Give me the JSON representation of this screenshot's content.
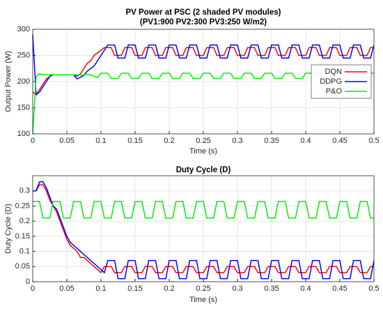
{
  "chart_data": [
    {
      "type": "line",
      "title": "PV Power at PSC (2 shaded PV modules)",
      "subtitle": "(PV1:900 PV2:300 PV3:250 W/m2)",
      "x_label": "Time (s)",
      "y_label": "Output Power (W)",
      "x": [
        0,
        0.005,
        0.01,
        0.015,
        0.02,
        0.025,
        0.03,
        0.035,
        0.04,
        0.045,
        0.05,
        0.055,
        0.06,
        0.065,
        0.07,
        0.075,
        0.08,
        0.085,
        0.09,
        0.095,
        0.1,
        0.105,
        0.11,
        0.115,
        0.12,
        0.125,
        0.13,
        0.135,
        0.14,
        0.145,
        0.15,
        0.155,
        0.16,
        0.165,
        0.17,
        0.175,
        0.18,
        0.185,
        0.19,
        0.195,
        0.2,
        0.205,
        0.21,
        0.215,
        0.22,
        0.225,
        0.23,
        0.235,
        0.24,
        0.245,
        0.25,
        0.255,
        0.26,
        0.265,
        0.27,
        0.275,
        0.28,
        0.285,
        0.29,
        0.295,
        0.3,
        0.305,
        0.31,
        0.315,
        0.32,
        0.325,
        0.33,
        0.335,
        0.34,
        0.345,
        0.35,
        0.355,
        0.36,
        0.365,
        0.37,
        0.375,
        0.38,
        0.385,
        0.39,
        0.395,
        0.4,
        0.405,
        0.41,
        0.415,
        0.42,
        0.425,
        0.43,
        0.435,
        0.44,
        0.445,
        0.45,
        0.455,
        0.46,
        0.465,
        0.47,
        0.475,
        0.48,
        0.485,
        0.49,
        0.495,
        0.5
      ],
      "series": [
        {
          "name": "DQN",
          "color": "#ff0000",
          "values": [
            180,
            175,
            185,
            195,
            205,
            210,
            213,
            213,
            213,
            213,
            213,
            213,
            213,
            210,
            215,
            225,
            235,
            240,
            250,
            255,
            260,
            265,
            265,
            265,
            250,
            250,
            250,
            265,
            265,
            265,
            250,
            250,
            250,
            265,
            265,
            265,
            250,
            250,
            250,
            265,
            265,
            265,
            250,
            250,
            250,
            265,
            265,
            265,
            250,
            250,
            250,
            265,
            265,
            265,
            250,
            250,
            250,
            265,
            265,
            265,
            250,
            250,
            250,
            265,
            265,
            265,
            250,
            250,
            250,
            265,
            265,
            265,
            250,
            250,
            250,
            265,
            265,
            265,
            250,
            250,
            250,
            265,
            265,
            265,
            250,
            250,
            250,
            265,
            265,
            265,
            250,
            250,
            250,
            265,
            265,
            265,
            250,
            250,
            250,
            265,
            265
          ]
        },
        {
          "name": "DDPG",
          "color": "#0000ff",
          "values": [
            290,
            175,
            180,
            190,
            200,
            210,
            213,
            213,
            213,
            213,
            213,
            213,
            213,
            205,
            208,
            212,
            220,
            225,
            230,
            240,
            250,
            260,
            270,
            270,
            270,
            245,
            245,
            245,
            270,
            270,
            270,
            245,
            245,
            245,
            270,
            270,
            270,
            245,
            245,
            245,
            270,
            270,
            270,
            245,
            245,
            245,
            270,
            270,
            270,
            245,
            245,
            245,
            270,
            270,
            270,
            245,
            245,
            245,
            270,
            270,
            270,
            245,
            245,
            245,
            270,
            270,
            270,
            245,
            245,
            245,
            270,
            270,
            270,
            245,
            245,
            245,
            270,
            270,
            270,
            245,
            245,
            245,
            270,
            270,
            270,
            245,
            245,
            245,
            270,
            270,
            270,
            245,
            245,
            245,
            270,
            270,
            270,
            245,
            245,
            245,
            270
          ]
        },
        {
          "name": "P&O",
          "color": "#00ee00",
          "values": [
            100,
            210,
            215,
            213,
            213,
            213,
            213,
            213,
            213,
            213,
            213,
            213,
            213,
            213,
            212,
            213,
            214,
            213,
            210,
            208,
            216,
            216,
            216,
            206,
            206,
            206,
            216,
            216,
            216,
            206,
            206,
            206,
            216,
            216,
            216,
            206,
            206,
            206,
            216,
            216,
            216,
            206,
            206,
            206,
            216,
            216,
            216,
            206,
            206,
            206,
            216,
            216,
            216,
            206,
            206,
            206,
            216,
            216,
            216,
            206,
            206,
            206,
            216,
            216,
            216,
            206,
            206,
            206,
            216,
            216,
            216,
            206,
            206,
            206,
            216,
            216,
            216,
            206,
            206,
            206,
            216,
            216,
            216,
            206,
            206,
            206,
            216,
            216,
            216,
            206,
            206,
            206,
            216,
            216,
            216,
            206,
            206,
            206,
            216,
            216,
            216
          ]
        }
      ],
      "xlim": [
        0,
        0.5
      ],
      "xticks": [
        0,
        0.05,
        0.1,
        0.15,
        0.2,
        0.25,
        0.3,
        0.35,
        0.4,
        0.45,
        0.5
      ],
      "ylim": [
        100,
        300
      ],
      "yticks": [
        100,
        150,
        200,
        250,
        300
      ],
      "grid": true,
      "legend": "right"
    },
    {
      "type": "line",
      "title": "Duty Cycle (D)",
      "x_label": "Time (s)",
      "y_label": "Duty Cycle (D)",
      "x": [
        0,
        0.005,
        0.01,
        0.015,
        0.02,
        0.025,
        0.03,
        0.035,
        0.04,
        0.045,
        0.05,
        0.055,
        0.06,
        0.065,
        0.07,
        0.075,
        0.08,
        0.085,
        0.09,
        0.095,
        0.1,
        0.105,
        0.11,
        0.115,
        0.12,
        0.125,
        0.13,
        0.135,
        0.14,
        0.145,
        0.15,
        0.155,
        0.16,
        0.165,
        0.17,
        0.175,
        0.18,
        0.185,
        0.19,
        0.195,
        0.2,
        0.205,
        0.21,
        0.215,
        0.22,
        0.225,
        0.23,
        0.235,
        0.24,
        0.245,
        0.25,
        0.255,
        0.26,
        0.265,
        0.27,
        0.275,
        0.28,
        0.285,
        0.29,
        0.295,
        0.3,
        0.305,
        0.31,
        0.315,
        0.32,
        0.325,
        0.33,
        0.335,
        0.34,
        0.345,
        0.35,
        0.355,
        0.36,
        0.365,
        0.37,
        0.375,
        0.38,
        0.385,
        0.39,
        0.395,
        0.4,
        0.405,
        0.41,
        0.415,
        0.42,
        0.425,
        0.43,
        0.435,
        0.44,
        0.445,
        0.45,
        0.455,
        0.46,
        0.465,
        0.47,
        0.475,
        0.48,
        0.485,
        0.49,
        0.495,
        0.5
      ],
      "series": [
        {
          "color": "#ff0000",
          "values": [
            0.3,
            0.3,
            0.32,
            0.32,
            0.3,
            0.27,
            0.25,
            0.23,
            0.2,
            0.17,
            0.14,
            0.12,
            0.11,
            0.1,
            0.08,
            0.08,
            0.07,
            0.06,
            0.05,
            0.04,
            0.03,
            0.05,
            0.05,
            0.05,
            0.03,
            0.03,
            0.03,
            0.05,
            0.05,
            0.05,
            0.03,
            0.03,
            0.03,
            0.05,
            0.05,
            0.05,
            0.03,
            0.03,
            0.03,
            0.05,
            0.05,
            0.05,
            0.03,
            0.03,
            0.03,
            0.05,
            0.05,
            0.05,
            0.03,
            0.03,
            0.03,
            0.05,
            0.05,
            0.05,
            0.03,
            0.03,
            0.03,
            0.05,
            0.05,
            0.05,
            0.03,
            0.03,
            0.03,
            0.05,
            0.05,
            0.05,
            0.03,
            0.03,
            0.03,
            0.05,
            0.05,
            0.05,
            0.03,
            0.03,
            0.03,
            0.05,
            0.05,
            0.05,
            0.03,
            0.03,
            0.03,
            0.05,
            0.05,
            0.05,
            0.03,
            0.03,
            0.03,
            0.05,
            0.05,
            0.05,
            0.03,
            0.03,
            0.03,
            0.05,
            0.05,
            0.05,
            0.03,
            0.03,
            0.03,
            0.05,
            0.05
          ]
        },
        {
          "color": "#0000ff",
          "values": [
            0.3,
            0.3,
            0.33,
            0.33,
            0.31,
            0.28,
            0.25,
            0.24,
            0.21,
            0.18,
            0.15,
            0.13,
            0.12,
            0.11,
            0.1,
            0.09,
            0.08,
            0.07,
            0.06,
            0.05,
            0.04,
            0.03,
            0.07,
            0.07,
            0.07,
            0.01,
            0.01,
            0.01,
            0.07,
            0.07,
            0.07,
            0.01,
            0.01,
            0.01,
            0.07,
            0.07,
            0.07,
            0.01,
            0.01,
            0.01,
            0.07,
            0.07,
            0.07,
            0.01,
            0.01,
            0.01,
            0.07,
            0.07,
            0.07,
            0.01,
            0.01,
            0.01,
            0.07,
            0.07,
            0.07,
            0.01,
            0.01,
            0.01,
            0.07,
            0.07,
            0.07,
            0.01,
            0.01,
            0.01,
            0.07,
            0.07,
            0.07,
            0.01,
            0.01,
            0.01,
            0.07,
            0.07,
            0.07,
            0.01,
            0.01,
            0.01,
            0.07,
            0.07,
            0.07,
            0.01,
            0.01,
            0.01,
            0.07,
            0.07,
            0.07,
            0.01,
            0.01,
            0.01,
            0.07,
            0.07,
            0.07,
            0.01,
            0.01,
            0.01,
            0.07,
            0.07,
            0.07,
            0.01,
            0.01,
            0.01,
            0.07
          ]
        },
        {
          "color": "#00ee00",
          "values": [
            0.265,
            0.265,
            0.265,
            0.21,
            0.21,
            0.21,
            0.265,
            0.265,
            0.265,
            0.21,
            0.21,
            0.21,
            0.265,
            0.265,
            0.265,
            0.21,
            0.21,
            0.21,
            0.265,
            0.265,
            0.265,
            0.21,
            0.21,
            0.21,
            0.265,
            0.265,
            0.265,
            0.21,
            0.21,
            0.21,
            0.265,
            0.265,
            0.265,
            0.21,
            0.21,
            0.21,
            0.265,
            0.265,
            0.265,
            0.21,
            0.21,
            0.21,
            0.265,
            0.265,
            0.265,
            0.21,
            0.21,
            0.21,
            0.265,
            0.265,
            0.265,
            0.21,
            0.21,
            0.21,
            0.265,
            0.265,
            0.265,
            0.21,
            0.21,
            0.21,
            0.265,
            0.265,
            0.265,
            0.21,
            0.21,
            0.21,
            0.265,
            0.265,
            0.265,
            0.21,
            0.21,
            0.21,
            0.265,
            0.265,
            0.265,
            0.21,
            0.21,
            0.21,
            0.265,
            0.265,
            0.265,
            0.21,
            0.21,
            0.21,
            0.265,
            0.265,
            0.265,
            0.21,
            0.21,
            0.21,
            0.265,
            0.265,
            0.265,
            0.21,
            0.21,
            0.21,
            0.265,
            0.265,
            0.265,
            0.21,
            0.21
          ]
        }
      ],
      "xlim": [
        0,
        0.5
      ],
      "xticks": [
        0,
        0.05,
        0.1,
        0.15,
        0.2,
        0.25,
        0.3,
        0.35,
        0.4,
        0.45,
        0.5
      ],
      "ylim": [
        0,
        0.35
      ],
      "yticks": [
        0,
        0.05,
        0.1,
        0.15,
        0.2,
        0.25,
        0.3
      ],
      "grid": true
    }
  ]
}
